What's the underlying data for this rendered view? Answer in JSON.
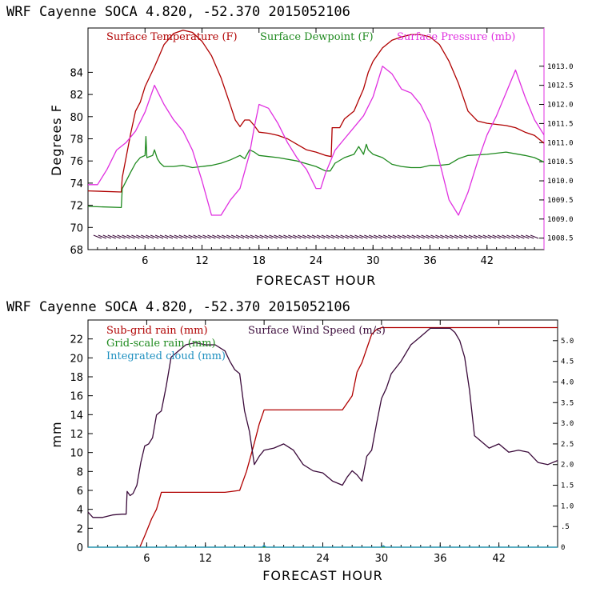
{
  "chart_data": [
    {
      "type": "line",
      "title": "WRF   Cayenne SOCA   4.820, -52.370  2015052106",
      "xlabel": "FORECAST HOUR",
      "ylabel": "Degrees F",
      "xlim": [
        0,
        48
      ],
      "ylim": [
        68,
        88
      ],
      "y2lim": [
        1008.2,
        1014.0
      ],
      "xticks": [
        "6",
        "12",
        "18",
        "24",
        "30",
        "36",
        "42"
      ],
      "yticks": [
        "68",
        "70",
        "72",
        "74",
        "76",
        "78",
        "80",
        "82",
        "84"
      ],
      "y2ticks": [
        "1008.5",
        "1009.0",
        "1009.5",
        "1010.0",
        "1010.5",
        "1011.0",
        "1011.5",
        "1012.0",
        "1012.5",
        "1013.0"
      ],
      "colors": {
        "temperature": "#b00000",
        "dewpoint": "#1f8a1f",
        "pressure": "#e030e0",
        "barbs": "#3a0a3a"
      },
      "series": [
        {
          "name": "Surface Temperature (F)",
          "axis": "left",
          "x": [
            0,
            3.5,
            3.6,
            4.5,
            5,
            5.5,
            6,
            6.5,
            7,
            7.5,
            8,
            9,
            10,
            11,
            12,
            13,
            14,
            15,
            15.5,
            16,
            16.5,
            17,
            17.5,
            18,
            19,
            20,
            21,
            22,
            23,
            24,
            25,
            25.6,
            25.7,
            26.5,
            27,
            28,
            28.5,
            29,
            29.5,
            30,
            31,
            32,
            33,
            34,
            35,
            36,
            37,
            38,
            39,
            40,
            41,
            42,
            43,
            44,
            45,
            46,
            47,
            48
          ],
          "values": [
            73.3,
            73.2,
            74.5,
            78.5,
            80.5,
            81.3,
            82.7,
            83.6,
            84.5,
            85.5,
            86.5,
            87.5,
            87.8,
            87.6,
            86.8,
            85.5,
            83.5,
            81.0,
            79.7,
            79.1,
            79.7,
            79.7,
            79.2,
            78.6,
            78.5,
            78.3,
            78.0,
            77.5,
            77.0,
            76.8,
            76.5,
            76.4,
            79.0,
            79.0,
            79.8,
            80.5,
            81.5,
            82.5,
            84.0,
            85.0,
            86.2,
            86.9,
            87.2,
            87.4,
            87.4,
            87.2,
            86.5,
            85.0,
            83.0,
            80.5,
            79.6,
            79.4,
            79.3,
            79.2,
            79.0,
            78.6,
            78.3,
            77.6
          ]
        },
        {
          "name": "Surface Dewpoint (F)",
          "axis": "left",
          "x": [
            0,
            3.5,
            3.6,
            4.5,
            5,
            5.5,
            6,
            6.1,
            6.2,
            6.8,
            7,
            7.3,
            7.6,
            8,
            9,
            10,
            11,
            12,
            13,
            14,
            15,
            16,
            16.5,
            17,
            17.5,
            18,
            19,
            20,
            22,
            24,
            25,
            25.5,
            26,
            27,
            28,
            28.5,
            29,
            29.3,
            29.5,
            30,
            31,
            32,
            33,
            34,
            35,
            36,
            37,
            38,
            39,
            40,
            42,
            44,
            46,
            47,
            48
          ],
          "values": [
            71.9,
            71.8,
            73.5,
            75.0,
            75.8,
            76.3,
            76.5,
            78.2,
            76.3,
            76.5,
            77.0,
            76.2,
            75.8,
            75.5,
            75.5,
            75.6,
            75.4,
            75.5,
            75.6,
            75.8,
            76.1,
            76.5,
            76.2,
            77.0,
            76.8,
            76.5,
            76.4,
            76.3,
            76.0,
            75.5,
            75.1,
            75.1,
            75.8,
            76.3,
            76.6,
            77.3,
            76.6,
            77.5,
            77.0,
            76.6,
            76.3,
            75.7,
            75.5,
            75.4,
            75.4,
            75.6,
            75.6,
            75.7,
            76.2,
            76.5,
            76.6,
            76.8,
            76.5,
            76.3,
            75.9
          ]
        },
        {
          "name": "Surface Pressure (mb)",
          "axis": "right",
          "x": [
            0,
            1,
            2,
            3,
            4,
            5,
            6,
            7,
            8,
            9,
            10,
            11,
            12,
            13,
            14,
            15,
            16,
            17,
            17.5,
            18,
            19,
            20,
            21,
            22,
            23,
            24,
            24.5,
            25,
            26,
            27,
            28,
            29,
            30,
            31,
            32,
            33,
            34,
            35,
            36,
            37,
            38,
            39,
            40,
            41,
            42,
            43,
            44,
            45,
            46,
            47,
            48
          ],
          "values": [
            1009.9,
            1009.9,
            1010.3,
            1010.8,
            1011.0,
            1011.3,
            1011.8,
            1012.5,
            1012.0,
            1011.6,
            1011.3,
            1010.8,
            1010.0,
            1009.1,
            1009.1,
            1009.5,
            1009.8,
            1010.7,
            1011.4,
            1012.0,
            1011.9,
            1011.5,
            1011.0,
            1010.6,
            1010.3,
            1009.8,
            1009.8,
            1010.2,
            1010.8,
            1011.1,
            1011.4,
            1011.7,
            1012.2,
            1013.0,
            1012.8,
            1012.4,
            1012.3,
            1012.0,
            1011.5,
            1010.5,
            1009.5,
            1009.1,
            1009.7,
            1010.5,
            1011.2,
            1011.7,
            1012.3,
            1012.9,
            1012.2,
            1011.6,
            1011.2
          ]
        }
      ]
    },
    {
      "type": "line",
      "title": "WRF   Cayenne SOCA   4.820, -52.370  2015052106",
      "xlabel": "FORECAST HOUR",
      "ylabel": "mm",
      "xlim": [
        0,
        48
      ],
      "ylim": [
        0,
        24
      ],
      "y2lim": [
        0,
        5.5
      ],
      "xticks": [
        "6",
        "12",
        "18",
        "24",
        "30",
        "36",
        "42"
      ],
      "yticks": [
        "0",
        "2",
        "4",
        "6",
        "8",
        "10",
        "12",
        "14",
        "16",
        "18",
        "20",
        "22"
      ],
      "y2ticks": [
        "0",
        ".5",
        "1.0",
        "1.5",
        "2.0",
        "2.5",
        "3.0",
        "3.5",
        "4.0",
        "4.5",
        "5.0"
      ],
      "colors": {
        "subgrid_rain": "#b00000",
        "gridscale_rain": "#1f8a1f",
        "cloud": "#1e90c0",
        "wind": "#3a0a3a"
      },
      "series": [
        {
          "name": "Sub-grid rain (mm)",
          "axis": "left",
          "x": [
            5.3,
            5.8,
            6.5,
            7.0,
            7.5,
            8,
            10,
            12,
            14,
            15.5,
            16.2,
            17.0,
            17.5,
            18,
            20,
            22,
            24,
            26,
            27,
            27.5,
            28,
            28.5,
            29,
            29.5,
            30,
            32,
            34,
            36,
            38,
            40,
            42,
            44,
            46,
            48
          ],
          "values": [
            0,
            1.2,
            3.0,
            4.0,
            5.8,
            5.8,
            5.8,
            5.8,
            5.8,
            6.0,
            8.0,
            11.0,
            13.0,
            14.5,
            14.5,
            14.5,
            14.5,
            14.5,
            16.0,
            18.5,
            19.5,
            21.0,
            22.5,
            23.0,
            23.2,
            23.2,
            23.2,
            23.2,
            23.2,
            23.2,
            23.2,
            23.2,
            23.2,
            23.2
          ]
        },
        {
          "name": "Grid-scale rain (mm)",
          "axis": "left",
          "x": [
            0,
            48
          ],
          "values": [
            0,
            0
          ]
        },
        {
          "name": "Integrated cloud (mm)",
          "axis": "left",
          "x": [
            0,
            17.8,
            18,
            18.2,
            30,
            30.2,
            30.4,
            48
          ],
          "values": [
            0,
            0,
            0.2,
            0,
            0,
            0.15,
            0,
            0
          ]
        },
        {
          "name": "Surface Wind Speed (m/s)",
          "axis": "right",
          "x": [
            0,
            0.5,
            1.5,
            2.5,
            3.5,
            3.9,
            4.0,
            4.3,
            4.6,
            5.0,
            5.4,
            5.8,
            6.2,
            6.6,
            7,
            7.5,
            8,
            8.5,
            9,
            9.5,
            10,
            11,
            12,
            13,
            14,
            14.5,
            15,
            15.5,
            16,
            16.5,
            17,
            17.5,
            18,
            19,
            20,
            21,
            22,
            23,
            24,
            25,
            26,
            26.5,
            27,
            27.5,
            28,
            28.5,
            29,
            29.5,
            30,
            30.5,
            31,
            32,
            33,
            34,
            35,
            36,
            37,
            37.5,
            38,
            38.5,
            39,
            39.5,
            40,
            41,
            42,
            43,
            44,
            45,
            46,
            47,
            48
          ],
          "values": [
            0.85,
            0.72,
            0.72,
            0.78,
            0.8,
            0.8,
            1.35,
            1.25,
            1.3,
            1.5,
            2.05,
            2.45,
            2.5,
            2.65,
            3.2,
            3.3,
            3.9,
            4.6,
            4.7,
            4.8,
            4.9,
            4.95,
            4.9,
            4.9,
            4.75,
            4.5,
            4.3,
            4.2,
            3.3,
            2.8,
            2.0,
            2.2,
            2.35,
            2.4,
            2.5,
            2.35,
            2.0,
            1.85,
            1.8,
            1.6,
            1.5,
            1.7,
            1.85,
            1.75,
            1.6,
            2.2,
            2.35,
            3.0,
            3.6,
            3.85,
            4.2,
            4.5,
            4.9,
            5.1,
            5.3,
            5.3,
            5.3,
            5.2,
            5.0,
            4.6,
            3.8,
            2.7,
            2.6,
            2.4,
            2.5,
            2.3,
            2.35,
            2.3,
            2.05,
            2.0,
            2.1
          ]
        }
      ]
    }
  ]
}
